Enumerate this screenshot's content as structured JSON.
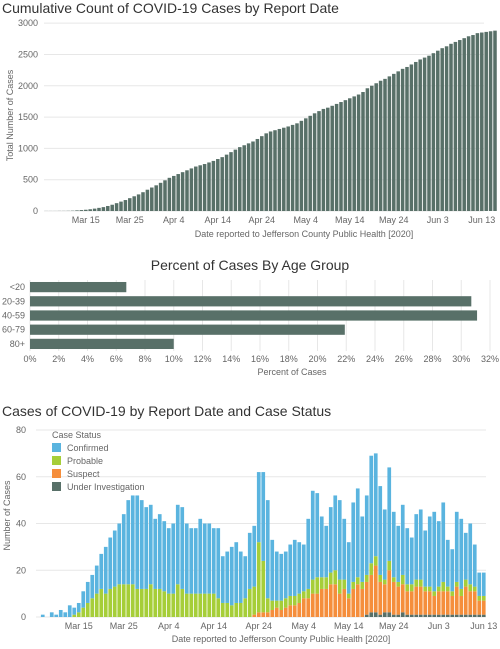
{
  "colors": {
    "bar": "#587068",
    "grid": "#e7e7e7",
    "tick_text": "#666666",
    "confirmed": "#5ab4df",
    "probable": "#a6ce39",
    "suspect": "#f58e3c",
    "under_investigation": "#587068"
  },
  "chart_data": [
    {
      "type": "bar",
      "title": "Cumulative Count of COVID-19 Cases by Report Date",
      "xlabel": "Date reported to Jefferson County Public Health [2020]",
      "ylabel": "Total Number of Cases",
      "ylim": [
        0,
        3050
      ],
      "yticks": [
        0,
        500,
        1000,
        1500,
        2000,
        2500,
        3000
      ],
      "x_start": "2020-03-06",
      "x_end": "2020-06-13",
      "xtick_labels": [
        "Mar 15",
        "Mar 25",
        "Apr 4",
        "Apr 14",
        "Apr 24",
        "May 4",
        "May 14",
        "May 24",
        "Jun 3",
        "Jun 13"
      ],
      "grid": true,
      "values": [
        1,
        1,
        1,
        2,
        2,
        3,
        5,
        10,
        15,
        20,
        28,
        38,
        50,
        62,
        80,
        100,
        125,
        150,
        175,
        205,
        235,
        265,
        300,
        340,
        375,
        410,
        450,
        490,
        530,
        560,
        590,
        620,
        650,
        680,
        710,
        730,
        750,
        775,
        800,
        830,
        860,
        900,
        940,
        980,
        1020,
        1050,
        1080,
        1110,
        1150,
        1195,
        1240,
        1270,
        1290,
        1310,
        1330,
        1350,
        1375,
        1400,
        1440,
        1480,
        1520,
        1560,
        1595,
        1630,
        1650,
        1680,
        1710,
        1740,
        1770,
        1800,
        1830,
        1860,
        1900,
        1960,
        2000,
        2040,
        2080,
        2110,
        2150,
        2190,
        2230,
        2270,
        2300,
        2340,
        2380,
        2420,
        2450,
        2480,
        2520,
        2560,
        2600,
        2630,
        2670,
        2700,
        2730,
        2760,
        2790,
        2810,
        2840,
        2850,
        2860,
        2870,
        2880
      ]
    },
    {
      "type": "bar",
      "orientation": "horizontal",
      "title": "Percent of Cases By Age Group",
      "xlabel": "Percent of Cases",
      "categories": [
        "<20",
        "20-39",
        "40-59",
        "60-79",
        "80+"
      ],
      "values": [
        6.7,
        30.7,
        31.1,
        21.9,
        10.0
      ],
      "xlim": [
        0,
        32
      ],
      "xtick_labels": [
        "0%",
        "2%",
        "4%",
        "6%",
        "8%",
        "10%",
        "12%",
        "14%",
        "16%",
        "18%",
        "20%",
        "22%",
        "24%",
        "26%",
        "28%",
        "30%",
        "32%"
      ],
      "grid": true
    },
    {
      "type": "bar",
      "stacked": true,
      "title": "Cases of COVID-19 by Report Date and Case Status",
      "xlabel": "Date reported to Jefferson County Public Health [2020]",
      "ylabel": "Number of Cases",
      "ylim": [
        0,
        80
      ],
      "yticks": [
        0,
        20,
        40,
        60,
        80
      ],
      "x_start": "2020-03-06",
      "x_end": "2020-06-13",
      "xtick_labels": [
        "Mar 15",
        "Mar 25",
        "Apr 4",
        "Apr 14",
        "Apr 24",
        "May 4",
        "May 14",
        "May 24",
        "Jun 3",
        "Jun 13"
      ],
      "grid": true,
      "legend": {
        "title": "Case Status",
        "position": "top-left"
      },
      "series": [
        {
          "name": "Confirmed",
          "values": [
            0,
            1,
            0,
            2,
            1,
            3,
            2,
            5,
            3,
            4,
            7,
            9,
            10,
            12,
            15,
            20,
            22,
            24,
            26,
            30,
            36,
            38,
            40,
            38,
            35,
            34,
            30,
            32,
            30,
            28,
            30,
            34,
            35,
            30,
            28,
            28,
            32,
            30,
            30,
            28,
            30,
            20,
            22,
            25,
            26,
            22,
            18,
            24,
            26,
            30,
            38,
            42,
            26,
            21,
            20,
            20,
            22,
            24,
            22,
            20,
            30,
            38,
            36,
            26,
            22,
            28,
            32,
            34,
            26,
            22,
            34,
            38,
            28,
            34,
            46,
            44,
            38,
            30,
            40,
            28,
            24,
            30,
            24,
            20,
            28,
            30,
            24,
            30,
            34,
            28,
            34,
            20,
            18,
            30,
            30,
            20,
            26,
            18,
            10,
            10,
            10,
            10,
            10,
            8
          ]
        },
        {
          "name": "Probable",
          "values": [
            0,
            0,
            0,
            0,
            0,
            0,
            0,
            0,
            1,
            2,
            4,
            6,
            8,
            10,
            12,
            10,
            12,
            13,
            14,
            14,
            14,
            14,
            12,
            12,
            12,
            14,
            12,
            12,
            11,
            10,
            10,
            14,
            12,
            10,
            10,
            10,
            10,
            10,
            10,
            10,
            8,
            6,
            6,
            5,
            6,
            6,
            8,
            12,
            12,
            30,
            22,
            6,
            4,
            3,
            4,
            4,
            4,
            4,
            4,
            3,
            4,
            6,
            7,
            5,
            5,
            5,
            6,
            6,
            4,
            2,
            3,
            3,
            3,
            3,
            5,
            4,
            3,
            2,
            4,
            2,
            2,
            4,
            3,
            3,
            3,
            3,
            2,
            2,
            2,
            2,
            4,
            2,
            2,
            2,
            3,
            3,
            3,
            2,
            2,
            2,
            3,
            6,
            4,
            3
          ]
        },
        {
          "name": "Suspect",
          "values": [
            0,
            0,
            0,
            0,
            0,
            0,
            0,
            0,
            0,
            0,
            0,
            0,
            0,
            0,
            0,
            0,
            0,
            0,
            0,
            0,
            0,
            0,
            0,
            0,
            0,
            0,
            0,
            0,
            0,
            0,
            0,
            0,
            0,
            0,
            0,
            0,
            0,
            0,
            0,
            0,
            0,
            0,
            0,
            0,
            0,
            0,
            0,
            0,
            1,
            2,
            2,
            2,
            3,
            4,
            3,
            4,
            5,
            5,
            6,
            8,
            8,
            10,
            10,
            12,
            12,
            14,
            14,
            10,
            12,
            8,
            12,
            14,
            12,
            14,
            16,
            20,
            14,
            12,
            18,
            14,
            12,
            12,
            10,
            10,
            12,
            12,
            10,
            10,
            8,
            10,
            10,
            10,
            8,
            12,
            8,
            12,
            10,
            10,
            6,
            6,
            6,
            8,
            10,
            12
          ]
        },
        {
          "name": "Under Investigation",
          "values": [
            0,
            0,
            0,
            0,
            0,
            0,
            0,
            0,
            0,
            0,
            0,
            0,
            0,
            0,
            0,
            0,
            0,
            0,
            0,
            0,
            0,
            0,
            0,
            0,
            0,
            0,
            0,
            0,
            0,
            0,
            0,
            0,
            0,
            0,
            0,
            0,
            0,
            0,
            0,
            0,
            0,
            0,
            0,
            0,
            0,
            0,
            0,
            0,
            0,
            0,
            0,
            0,
            0,
            0,
            0,
            0,
            0,
            0,
            0,
            0,
            0,
            0,
            0,
            0,
            0,
            0,
            0,
            0,
            0,
            0,
            0,
            0,
            0,
            1,
            2,
            2,
            1,
            2,
            2,
            1,
            1,
            2,
            1,
            1,
            1,
            1,
            1,
            1,
            1,
            1,
            1,
            1,
            1,
            1,
            1,
            1,
            1,
            1,
            1,
            1,
            1,
            0,
            0,
            0
          ]
        }
      ]
    }
  ]
}
